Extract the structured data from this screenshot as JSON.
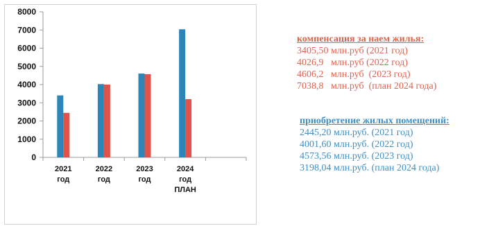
{
  "chart_data": {
    "type": "bar",
    "categories": [
      {
        "line1": "2021",
        "line2": "год",
        "line3": ""
      },
      {
        "line1": "2022",
        "line2": "год",
        "line3": ""
      },
      {
        "line1": "2023",
        "line2": "год",
        "line3": ""
      },
      {
        "line1": "2024",
        "line2": "год",
        "line3": "ПЛАН"
      }
    ],
    "series": [
      {
        "values": [
          3405.5,
          4026.9,
          4606.2,
          7038.8
        ],
        "color": "#2e86b8"
      },
      {
        "values": [
          2445.2,
          4001.6,
          4573.56,
          3198.04
        ],
        "color": "#e0524a"
      }
    ],
    "ylim": [
      0,
      8000
    ],
    "yticks": [
      "0",
      "1000",
      "2000",
      "3000",
      "4000",
      "5000",
      "6000",
      "7000",
      "8000"
    ],
    "grid": false
  },
  "legend_compensation": {
    "heading": "компенсация за наем жилья:",
    "lines": [
      "3405,50 млн.руб (2021 год)",
      "4026,9   млн.руб (2022 год)",
      "4606,2   млн.руб  (2023 год)",
      "7038,8   млн.руб  (план 2024 года)"
    ],
    "color": "#e0614f"
  },
  "legend_acquisition": {
    "heading": "приобретение жилых помещений:",
    "lines": [
      "2445,20 млн.руб. (2021 год)",
      "4001,60 млн.руб. (2022 год)",
      "4573,56 млн.руб. (2023 год)",
      "3198,04 млн.руб. (план 2024 года)"
    ],
    "color": "#3d8fc6"
  }
}
